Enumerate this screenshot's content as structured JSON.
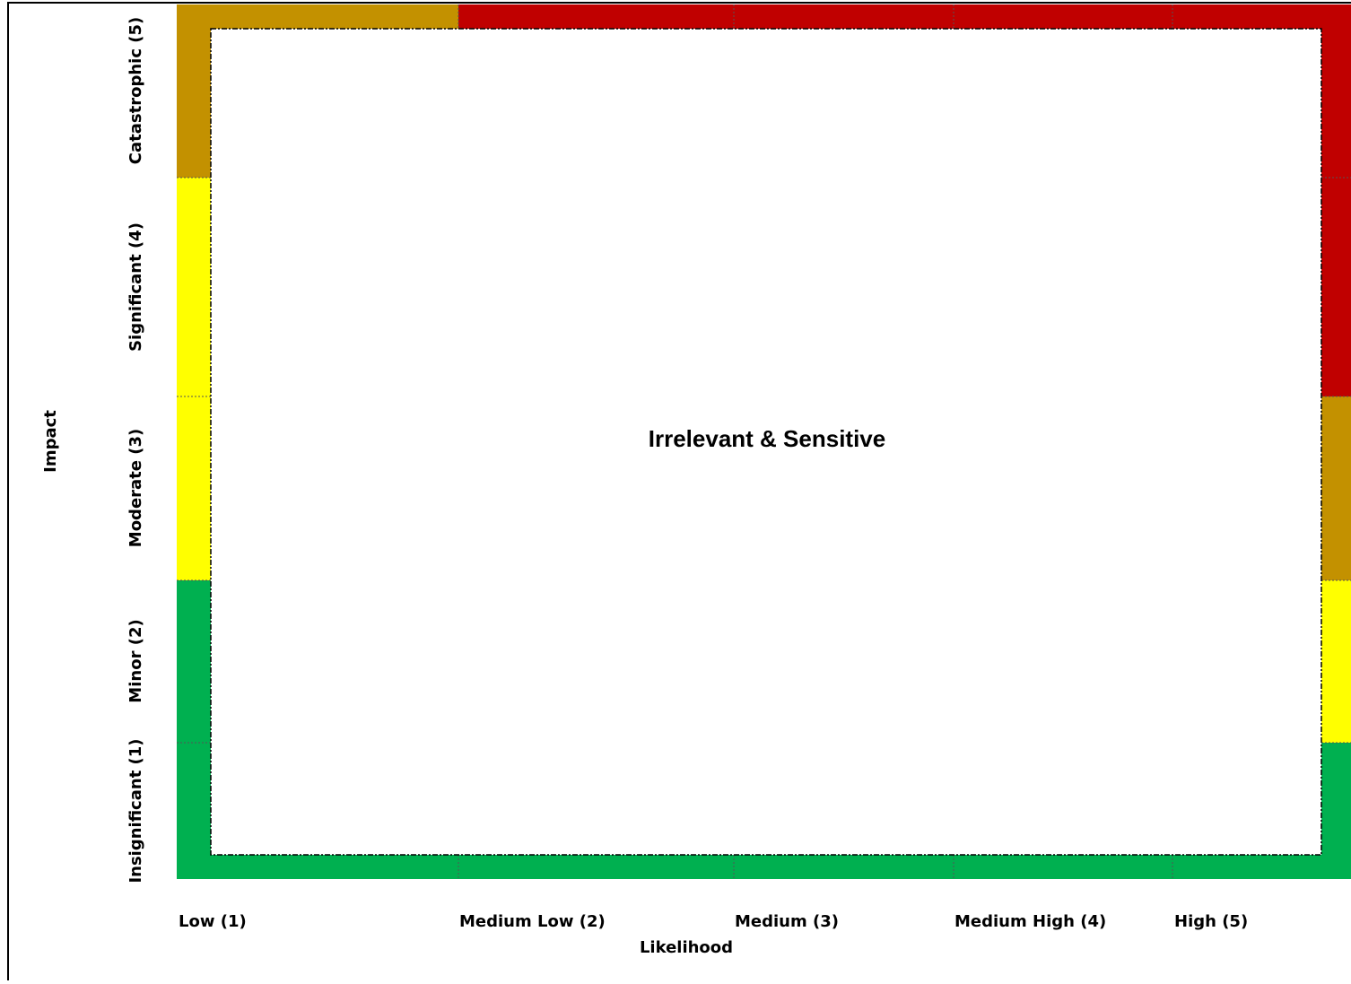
{
  "axis": {
    "x_label": "Likelihood",
    "y_label": "Impact"
  },
  "columns": [
    "Low (1)",
    "Medium Low (2)",
    "Medium (3)",
    "Medium High (4)",
    "High (5)"
  ],
  "rows": [
    "Insignificant (1)",
    "Minor (2)",
    "Moderate (3)",
    "Significant (4)",
    "Catastrophic (5)"
  ],
  "center_label": "Irrelevant & Sensitive"
}
